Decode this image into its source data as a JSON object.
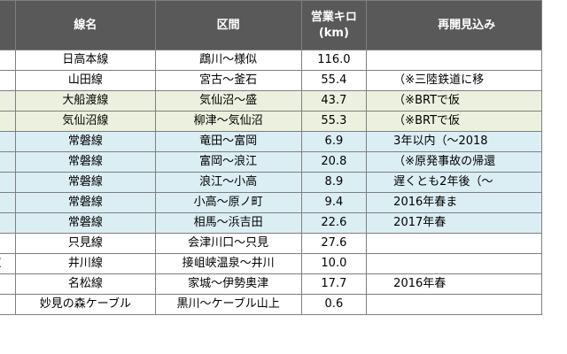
{
  "headers": {
    "section_prefix": "",
    "line_name": "線名",
    "section": "区間",
    "km_line1": "営業キロ",
    "km_line2": "(km)",
    "reopen": "再開見込み"
  },
  "rows": [
    {
      "prefix": "",
      "line": "日高本線",
      "section": "鵡川～様似",
      "km": "116.0",
      "reopen": "",
      "style": "plain"
    },
    {
      "prefix": "",
      "line": "山田線",
      "section": "宮古～釜石",
      "km": "55.4",
      "reopen": "（※三陸鉄道に移",
      "style": "plain"
    },
    {
      "prefix": "",
      "line": "大船渡線",
      "section": "気仙沼～盛",
      "km": "43.7",
      "reopen": "（※BRTで仮",
      "style": "green"
    },
    {
      "prefix": "",
      "line": "気仙沼線",
      "section": "柳津～気仙沼",
      "km": "55.3",
      "reopen": "（※BRTで仮",
      "style": "green"
    },
    {
      "prefix": "",
      "line": "常磐線",
      "section": "竜田～富岡",
      "km": "6.9",
      "reopen": "3年以内（～2018",
      "style": "blue"
    },
    {
      "prefix": "",
      "line": "常磐線",
      "section": "富岡～浪江",
      "km": "20.8",
      "reopen": "（※原発事故の帰還",
      "style": "blue"
    },
    {
      "prefix": "",
      "line": "常磐線",
      "section": "浪江～小高",
      "km": "8.9",
      "reopen": "遅くとも2年後（～",
      "style": "blue"
    },
    {
      "prefix": "",
      "line": "常磐線",
      "section": "小高～原ノ町",
      "km": "9.4",
      "reopen": "2016年春ま",
      "style": "blue"
    },
    {
      "prefix": "",
      "line": "常磐線",
      "section": "相馬～浜吉田",
      "km": "22.6",
      "reopen": "2017年春",
      "style": "blue"
    },
    {
      "prefix": "",
      "line": "只見線",
      "section": "会津川口～只見",
      "km": "27.6",
      "reopen": "",
      "style": "plain"
    },
    {
      "prefix": "道",
      "line": "井川線",
      "section": "接岨峡温泉～井川",
      "km": "10.0",
      "reopen": "",
      "style": "plain"
    },
    {
      "prefix": "",
      "line": "名松線",
      "section": "家城～伊勢奥津",
      "km": "17.7",
      "reopen": "2016年春",
      "style": "plain"
    },
    {
      "prefix": "",
      "line": "妙見の森ケーブル",
      "section": "黒川～ケーブル山上",
      "km": "0.6",
      "reopen": "",
      "style": "plain"
    }
  ]
}
